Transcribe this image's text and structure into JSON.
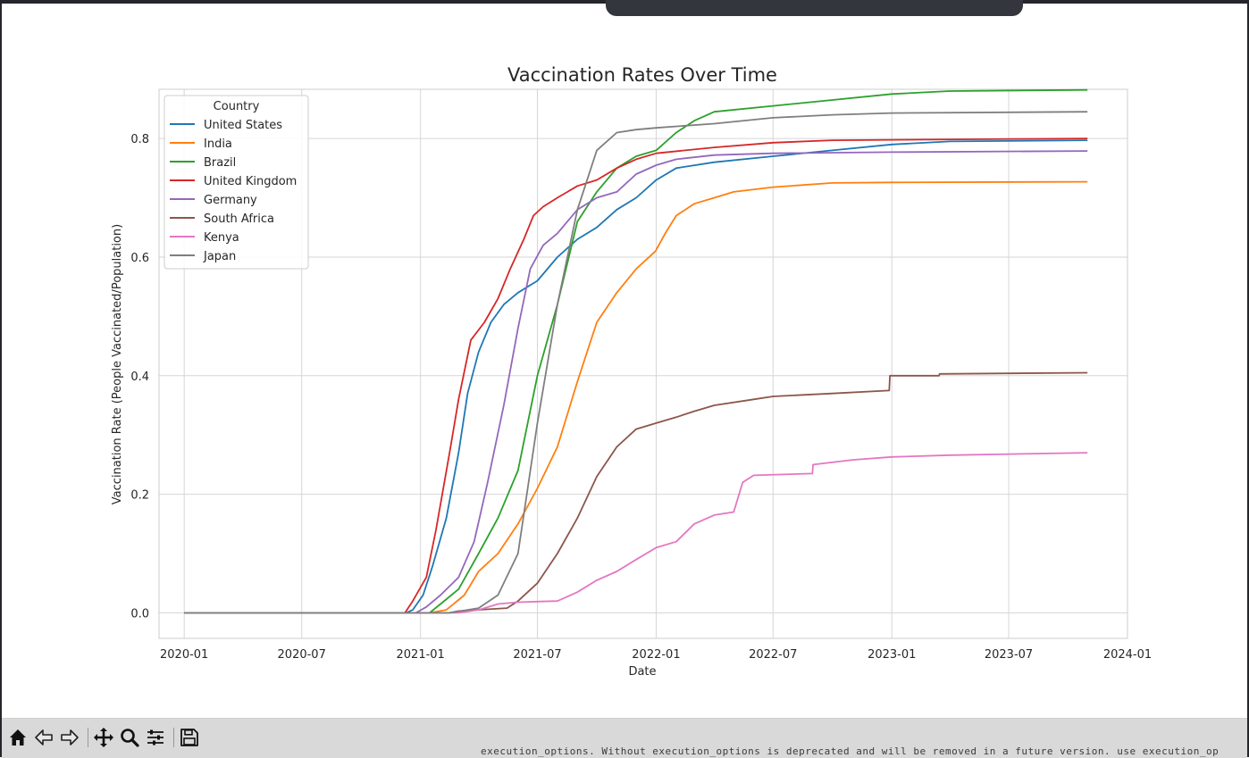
{
  "chart_data": {
    "type": "line",
    "title": "Vaccination Rates Over Time",
    "xlabel": "Date",
    "ylabel": "Vaccination Rate (People Vaccinated/Population)",
    "xlim": [
      "2019-11-23",
      "2024-01-01"
    ],
    "ylim": [
      -0.043,
      0.883
    ],
    "x_ticks": [
      "2020-01",
      "2020-07",
      "2021-01",
      "2021-07",
      "2022-01",
      "2022-07",
      "2023-01",
      "2023-07",
      "2024-01"
    ],
    "y_ticks": [
      "0.0",
      "0.2",
      "0.4",
      "0.6",
      "0.8"
    ],
    "grid": true,
    "legend": {
      "title": "Country",
      "placement": "upper-left"
    },
    "series": [
      {
        "name": "United States",
        "color": "#1f77b4",
        "points": [
          [
            "2020-01-01",
            0
          ],
          [
            "2020-12-10",
            0
          ],
          [
            "2020-12-20",
            0.005
          ],
          [
            "2021-01-05",
            0.03
          ],
          [
            "2021-01-20",
            0.08
          ],
          [
            "2021-02-10",
            0.16
          ],
          [
            "2021-03-01",
            0.27
          ],
          [
            "2021-03-15",
            0.37
          ],
          [
            "2021-04-01",
            0.44
          ],
          [
            "2021-04-20",
            0.49
          ],
          [
            "2021-05-10",
            0.52
          ],
          [
            "2021-06-01",
            0.54
          ],
          [
            "2021-07-01",
            0.56
          ],
          [
            "2021-08-01",
            0.6
          ],
          [
            "2021-09-01",
            0.63
          ],
          [
            "2021-10-01",
            0.65
          ],
          [
            "2021-11-01",
            0.68
          ],
          [
            "2021-12-01",
            0.7
          ],
          [
            "2022-01-01",
            0.73
          ],
          [
            "2022-02-01",
            0.75
          ],
          [
            "2022-04-01",
            0.76
          ],
          [
            "2022-07-01",
            0.77
          ],
          [
            "2022-10-01",
            0.78
          ],
          [
            "2023-01-01",
            0.79
          ],
          [
            "2023-04-01",
            0.795
          ],
          [
            "2023-10-31",
            0.797
          ]
        ]
      },
      {
        "name": "India",
        "color": "#ff7f0e",
        "points": [
          [
            "2020-01-01",
            0
          ],
          [
            "2021-01-15",
            0
          ],
          [
            "2021-02-10",
            0.005
          ],
          [
            "2021-03-10",
            0.03
          ],
          [
            "2021-04-01",
            0.07
          ],
          [
            "2021-05-01",
            0.1
          ],
          [
            "2021-06-01",
            0.15
          ],
          [
            "2021-07-01",
            0.21
          ],
          [
            "2021-08-01",
            0.28
          ],
          [
            "2021-09-01",
            0.39
          ],
          [
            "2021-10-01",
            0.49
          ],
          [
            "2021-11-01",
            0.54
          ],
          [
            "2021-12-01",
            0.58
          ],
          [
            "2021-12-31",
            0.61
          ],
          [
            "2022-01-15",
            0.64
          ],
          [
            "2022-02-01",
            0.67
          ],
          [
            "2022-03-01",
            0.69
          ],
          [
            "2022-04-01",
            0.7
          ],
          [
            "2022-05-01",
            0.71
          ],
          [
            "2022-07-01",
            0.718
          ],
          [
            "2022-10-01",
            0.725
          ],
          [
            "2023-01-01",
            0.726
          ],
          [
            "2023-10-31",
            0.727
          ]
        ]
      },
      {
        "name": "Brazil",
        "color": "#2ca02c",
        "points": [
          [
            "2020-01-01",
            0
          ],
          [
            "2021-01-15",
            0
          ],
          [
            "2021-02-01",
            0.015
          ],
          [
            "2021-03-01",
            0.04
          ],
          [
            "2021-04-01",
            0.1
          ],
          [
            "2021-05-01",
            0.16
          ],
          [
            "2021-06-01",
            0.24
          ],
          [
            "2021-07-01",
            0.4
          ],
          [
            "2021-08-01",
            0.52
          ],
          [
            "2021-09-01",
            0.66
          ],
          [
            "2021-10-01",
            0.71
          ],
          [
            "2021-11-01",
            0.75
          ],
          [
            "2021-12-01",
            0.77
          ],
          [
            "2022-01-01",
            0.78
          ],
          [
            "2022-02-01",
            0.81
          ],
          [
            "2022-03-01",
            0.83
          ],
          [
            "2022-04-01",
            0.845
          ],
          [
            "2022-07-01",
            0.855
          ],
          [
            "2022-10-01",
            0.865
          ],
          [
            "2023-01-01",
            0.875
          ],
          [
            "2023-04-01",
            0.88
          ],
          [
            "2023-10-31",
            0.882
          ]
        ]
      },
      {
        "name": "United Kingdom",
        "color": "#d62728",
        "points": [
          [
            "2020-01-01",
            0
          ],
          [
            "2020-12-08",
            0
          ],
          [
            "2020-12-20",
            0.02
          ],
          [
            "2021-01-10",
            0.06
          ],
          [
            "2021-01-25",
            0.14
          ],
          [
            "2021-02-15",
            0.27
          ],
          [
            "2021-03-01",
            0.36
          ],
          [
            "2021-03-20",
            0.46
          ],
          [
            "2021-04-10",
            0.49
          ],
          [
            "2021-05-01",
            0.53
          ],
          [
            "2021-05-20",
            0.58
          ],
          [
            "2021-06-10",
            0.63
          ],
          [
            "2021-06-25",
            0.67
          ],
          [
            "2021-07-10",
            0.685
          ],
          [
            "2021-08-01",
            0.7
          ],
          [
            "2021-09-01",
            0.72
          ],
          [
            "2021-10-01",
            0.73
          ],
          [
            "2021-11-01",
            0.75
          ],
          [
            "2021-12-01",
            0.765
          ],
          [
            "2022-01-01",
            0.775
          ],
          [
            "2022-04-01",
            0.785
          ],
          [
            "2022-07-01",
            0.793
          ],
          [
            "2022-10-01",
            0.797
          ],
          [
            "2023-10-31",
            0.8
          ]
        ]
      },
      {
        "name": "Germany",
        "color": "#9467bd",
        "points": [
          [
            "2020-01-01",
            0
          ],
          [
            "2020-12-25",
            0
          ],
          [
            "2021-01-10",
            0.01
          ],
          [
            "2021-02-01",
            0.03
          ],
          [
            "2021-03-01",
            0.06
          ],
          [
            "2021-03-25",
            0.12
          ],
          [
            "2021-04-15",
            0.22
          ],
          [
            "2021-05-10",
            0.35
          ],
          [
            "2021-06-01",
            0.48
          ],
          [
            "2021-06-20",
            0.58
          ],
          [
            "2021-07-10",
            0.62
          ],
          [
            "2021-08-01",
            0.64
          ],
          [
            "2021-09-01",
            0.68
          ],
          [
            "2021-10-01",
            0.7
          ],
          [
            "2021-11-01",
            0.71
          ],
          [
            "2021-12-01",
            0.74
          ],
          [
            "2022-01-01",
            0.755
          ],
          [
            "2022-02-01",
            0.765
          ],
          [
            "2022-04-01",
            0.772
          ],
          [
            "2022-07-01",
            0.775
          ],
          [
            "2023-01-01",
            0.777
          ],
          [
            "2023-10-31",
            0.779
          ]
        ]
      },
      {
        "name": "South Africa",
        "color": "#8c564b",
        "points": [
          [
            "2020-01-01",
            0
          ],
          [
            "2021-02-15",
            0
          ],
          [
            "2021-03-01",
            0.003
          ],
          [
            "2021-05-15",
            0.008
          ],
          [
            "2021-06-01",
            0.02
          ],
          [
            "2021-07-01",
            0.05
          ],
          [
            "2021-08-01",
            0.1
          ],
          [
            "2021-09-01",
            0.16
          ],
          [
            "2021-10-01",
            0.23
          ],
          [
            "2021-11-01",
            0.28
          ],
          [
            "2021-12-01",
            0.31
          ],
          [
            "2022-01-01",
            0.32
          ],
          [
            "2022-02-01",
            0.33
          ],
          [
            "2022-03-01",
            0.34
          ],
          [
            "2022-04-01",
            0.35
          ],
          [
            "2022-06-01",
            0.36
          ],
          [
            "2022-07-01",
            0.365
          ],
          [
            "2022-10-01",
            0.37
          ],
          [
            "2022-12-28",
            0.375
          ],
          [
            "2022-12-29",
            0.4
          ],
          [
            "2023-03-15",
            0.4
          ],
          [
            "2023-03-16",
            0.403
          ],
          [
            "2023-10-31",
            0.405
          ]
        ]
      },
      {
        "name": "Kenya",
        "color": "#e377c2",
        "points": [
          [
            "2020-01-01",
            0
          ],
          [
            "2021-03-01",
            0
          ],
          [
            "2021-04-01",
            0.005
          ],
          [
            "2021-05-01",
            0.015
          ],
          [
            "2021-06-01",
            0.018
          ],
          [
            "2021-07-01",
            0.019
          ],
          [
            "2021-08-01",
            0.02
          ],
          [
            "2021-09-01",
            0.035
          ],
          [
            "2021-10-01",
            0.055
          ],
          [
            "2021-11-01",
            0.07
          ],
          [
            "2021-12-01",
            0.09
          ],
          [
            "2022-01-01",
            0.11
          ],
          [
            "2022-02-01",
            0.12
          ],
          [
            "2022-03-01",
            0.15
          ],
          [
            "2022-04-01",
            0.165
          ],
          [
            "2022-05-01",
            0.17
          ],
          [
            "2022-05-15",
            0.22
          ],
          [
            "2022-06-01",
            0.232
          ],
          [
            "2022-08-31",
            0.235
          ],
          [
            "2022-09-01",
            0.25
          ],
          [
            "2022-11-01",
            0.258
          ],
          [
            "2023-01-01",
            0.263
          ],
          [
            "2023-04-01",
            0.266
          ],
          [
            "2023-10-31",
            0.27
          ]
        ]
      },
      {
        "name": "Japan",
        "color": "#7f7f7f",
        "points": [
          [
            "2020-01-01",
            0
          ],
          [
            "2021-02-15",
            0
          ],
          [
            "2021-04-01",
            0.008
          ],
          [
            "2021-05-01",
            0.03
          ],
          [
            "2021-06-01",
            0.1
          ],
          [
            "2021-07-01",
            0.32
          ],
          [
            "2021-08-01",
            0.52
          ],
          [
            "2021-09-01",
            0.68
          ],
          [
            "2021-10-01",
            0.78
          ],
          [
            "2021-11-01",
            0.81
          ],
          [
            "2021-12-01",
            0.815
          ],
          [
            "2022-01-01",
            0.818
          ],
          [
            "2022-04-01",
            0.825
          ],
          [
            "2022-07-01",
            0.835
          ],
          [
            "2022-10-01",
            0.84
          ],
          [
            "2023-01-01",
            0.843
          ],
          [
            "2023-10-31",
            0.845
          ]
        ]
      }
    ]
  },
  "toolbar": {
    "buttons": [
      {
        "name": "home-button",
        "icon": "home-icon"
      },
      {
        "name": "back-button",
        "icon": "arrow-left-icon"
      },
      {
        "name": "forward-button",
        "icon": "arrow-right-icon"
      },
      {
        "name": "pan-button",
        "icon": "move-icon"
      },
      {
        "name": "zoom-button",
        "icon": "magnifier-icon"
      },
      {
        "name": "configure-subplots-button",
        "icon": "sliders-icon"
      },
      {
        "name": "save-button",
        "icon": "floppy-disk-icon"
      }
    ]
  },
  "status_text": "execution_options. Without execution_options is deprecated and will be removed in a future version. use execution_op"
}
